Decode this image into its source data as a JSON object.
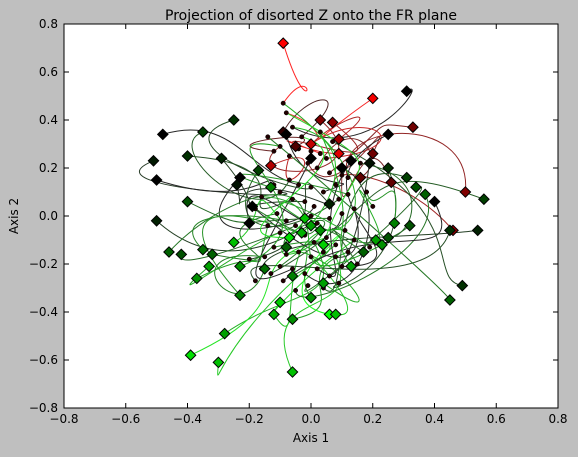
{
  "chart_data": {
    "type": "scatter",
    "title": "Projection of disorted Z onto the FR plane",
    "xlabel": "Axis 1",
    "ylabel": "Axis 2",
    "xlim": [
      -0.8,
      0.8
    ],
    "ylim": [
      -0.8,
      0.8
    ],
    "x_ticks": [
      "−0.8",
      "−0.6",
      "−0.4",
      "−0.2",
      "0.0",
      "0.2",
      "0.4",
      "0.6",
      "0.8"
    ],
    "y_ticks": [
      "−0.8",
      "−0.6",
      "−0.4",
      "−0.2",
      "0.0",
      "0.2",
      "0.4",
      "0.6",
      "0.8"
    ],
    "grid": false,
    "colors": {
      "figure_background": "#bfbfbf",
      "axes_background": "#ffffff",
      "dark_end": "#000000",
      "red_end": "#ff0000",
      "green_end": "#00ff00"
    },
    "endpoint_markers": [
      {
        "x": -0.09,
        "y": 0.72,
        "c": "#ff0000"
      },
      {
        "x": 0.2,
        "y": 0.49,
        "c": "#f50000"
      },
      {
        "x": 0.31,
        "y": 0.52,
        "c": "#000000"
      },
      {
        "x": -0.09,
        "y": 0.35,
        "c": "#300000"
      },
      {
        "x": 0.03,
        "y": 0.4,
        "c": "#800000"
      },
      {
        "x": -0.05,
        "y": 0.29,
        "c": "#500000"
      },
      {
        "x": 0.07,
        "y": 0.39,
        "c": "#900000"
      },
      {
        "x": 0.09,
        "y": 0.32,
        "c": "#a00000"
      },
      {
        "x": 0.09,
        "y": 0.26,
        "c": "#e00000"
      },
      {
        "x": 0.0,
        "y": 0.3,
        "c": "#c00000"
      },
      {
        "x": -0.13,
        "y": 0.21,
        "c": "#b00000"
      },
      {
        "x": 0.2,
        "y": 0.26,
        "c": "#700000"
      },
      {
        "x": 0.16,
        "y": 0.16,
        "c": "#600000"
      },
      {
        "x": 0.33,
        "y": 0.37,
        "c": "#700000"
      },
      {
        "x": 0.26,
        "y": 0.14,
        "c": "#600000"
      },
      {
        "x": 0.5,
        "y": 0.1,
        "c": "#800000"
      },
      {
        "x": 0.46,
        "y": -0.06,
        "c": "#900000"
      },
      {
        "x": -0.08,
        "y": 0.34,
        "c": "#000000"
      },
      {
        "x": -0.25,
        "y": 0.4,
        "c": "#003000"
      },
      {
        "x": -0.48,
        "y": 0.34,
        "c": "#000000"
      },
      {
        "x": -0.35,
        "y": 0.35,
        "c": "#004000"
      },
      {
        "x": -0.51,
        "y": 0.23,
        "c": "#001800"
      },
      {
        "x": -0.5,
        "y": 0.15,
        "c": "#000000"
      },
      {
        "x": -0.4,
        "y": 0.25,
        "c": "#003000"
      },
      {
        "x": -0.29,
        "y": 0.24,
        "c": "#002000"
      },
      {
        "x": -0.23,
        "y": 0.16,
        "c": "#000000"
      },
      {
        "x": -0.24,
        "y": 0.13,
        "c": "#001000"
      },
      {
        "x": -0.17,
        "y": 0.19,
        "c": "#004000"
      },
      {
        "x": -0.13,
        "y": 0.12,
        "c": "#008000"
      },
      {
        "x": -0.19,
        "y": 0.04,
        "c": "#000000"
      },
      {
        "x": -0.2,
        "y": -0.03,
        "c": "#000000"
      },
      {
        "x": -0.4,
        "y": 0.06,
        "c": "#005000"
      },
      {
        "x": -0.5,
        "y": -0.02,
        "c": "#002000"
      },
      {
        "x": -0.46,
        "y": -0.15,
        "c": "#006000"
      },
      {
        "x": -0.42,
        "y": -0.16,
        "c": "#005000"
      },
      {
        "x": -0.35,
        "y": -0.14,
        "c": "#007000"
      },
      {
        "x": -0.32,
        "y": -0.16,
        "c": "#006000"
      },
      {
        "x": -0.37,
        "y": -0.26,
        "c": "#009000"
      },
      {
        "x": -0.33,
        "y": -0.21,
        "c": "#00a000"
      },
      {
        "x": -0.25,
        "y": -0.11,
        "c": "#00c000"
      },
      {
        "x": -0.23,
        "y": -0.33,
        "c": "#008000"
      },
      {
        "x": -0.28,
        "y": -0.49,
        "c": "#00a000"
      },
      {
        "x": -0.39,
        "y": -0.58,
        "c": "#00e000"
      },
      {
        "x": -0.3,
        "y": -0.61,
        "c": "#00c000"
      },
      {
        "x": -0.12,
        "y": -0.41,
        "c": "#00b000"
      },
      {
        "x": -0.1,
        "y": -0.36,
        "c": "#00d000"
      },
      {
        "x": -0.06,
        "y": -0.43,
        "c": "#009000"
      },
      {
        "x": -0.06,
        "y": -0.65,
        "c": "#00c000"
      },
      {
        "x": 0.06,
        "y": -0.41,
        "c": "#00ff00"
      },
      {
        "x": 0.08,
        "y": -0.41,
        "c": "#00c000"
      },
      {
        "x": 0.0,
        "y": -0.34,
        "c": "#009000"
      },
      {
        "x": 0.04,
        "y": -0.28,
        "c": "#00a000"
      },
      {
        "x": -0.06,
        "y": -0.25,
        "c": "#008000"
      },
      {
        "x": -0.15,
        "y": -0.22,
        "c": "#007000"
      },
      {
        "x": -0.08,
        "y": -0.13,
        "c": "#006000"
      },
      {
        "x": 0.0,
        "y": 0.24,
        "c": "#000000"
      },
      {
        "x": 0.1,
        "y": 0.2,
        "c": "#000000"
      },
      {
        "x": 0.13,
        "y": 0.23,
        "c": "#000000"
      },
      {
        "x": 0.19,
        "y": 0.22,
        "c": "#001000"
      },
      {
        "x": 0.25,
        "y": 0.34,
        "c": "#000000"
      },
      {
        "x": 0.25,
        "y": 0.2,
        "c": "#003000"
      },
      {
        "x": 0.31,
        "y": 0.16,
        "c": "#004000"
      },
      {
        "x": 0.34,
        "y": 0.12,
        "c": "#005000"
      },
      {
        "x": 0.37,
        "y": 0.09,
        "c": "#006000"
      },
      {
        "x": 0.4,
        "y": 0.06,
        "c": "#000000"
      },
      {
        "x": 0.56,
        "y": 0.07,
        "c": "#004000"
      },
      {
        "x": 0.54,
        "y": -0.06,
        "c": "#002000"
      },
      {
        "x": 0.45,
        "y": -0.06,
        "c": "#003000"
      },
      {
        "x": 0.32,
        "y": -0.04,
        "c": "#005000"
      },
      {
        "x": 0.27,
        "y": -0.03,
        "c": "#008000"
      },
      {
        "x": 0.25,
        "y": -0.09,
        "c": "#005000"
      },
      {
        "x": 0.21,
        "y": -0.1,
        "c": "#00a000"
      },
      {
        "x": 0.23,
        "y": -0.12,
        "c": "#009000"
      },
      {
        "x": 0.17,
        "y": -0.15,
        "c": "#006000"
      },
      {
        "x": 0.13,
        "y": -0.21,
        "c": "#00a000"
      },
      {
        "x": 0.49,
        "y": -0.29,
        "c": "#003000"
      },
      {
        "x": 0.45,
        "y": -0.35,
        "c": "#006000"
      },
      {
        "x": 0.03,
        "y": -0.06,
        "c": "#009000"
      },
      {
        "x": 0.06,
        "y": 0.05,
        "c": "#002000"
      },
      {
        "x": -0.02,
        "y": -0.01,
        "c": "#00c000"
      },
      {
        "x": 0.0,
        "y": -0.04,
        "c": "#00a000"
      },
      {
        "x": 0.04,
        "y": -0.12,
        "c": "#00d000"
      },
      {
        "x": -0.03,
        "y": -0.07,
        "c": "#00b000"
      },
      {
        "x": -0.07,
        "y": -0.09,
        "c": "#00e000"
      },
      {
        "x": -0.23,
        "y": -0.21,
        "c": "#009000"
      }
    ],
    "start_points": [
      [
        -0.09,
        0.47
      ],
      [
        -0.08,
        0.43
      ],
      [
        -0.06,
        0.37
      ],
      [
        -0.03,
        0.33
      ],
      [
        -0.1,
        0.29
      ],
      [
        -0.12,
        0.27
      ],
      [
        -0.04,
        0.28
      ],
      [
        0.0,
        0.27
      ],
      [
        0.03,
        0.26
      ],
      [
        0.05,
        0.24
      ],
      [
        -0.07,
        0.25
      ],
      [
        -0.01,
        0.22
      ],
      [
        0.02,
        0.2
      ],
      [
        0.06,
        0.18
      ],
      [
        0.1,
        0.17
      ],
      [
        0.12,
        0.16
      ],
      [
        0.08,
        0.13
      ],
      [
        0.04,
        0.1
      ],
      [
        0.0,
        0.12
      ],
      [
        -0.04,
        0.13
      ],
      [
        -0.07,
        0.15
      ],
      [
        -0.1,
        0.1
      ],
      [
        -0.12,
        0.13
      ],
      [
        -0.06,
        0.07
      ],
      [
        -0.02,
        0.06
      ],
      [
        0.01,
        0.04
      ],
      [
        0.05,
        0.05
      ],
      [
        0.09,
        0.07
      ],
      [
        0.12,
        0.09
      ],
      [
        0.14,
        0.03
      ],
      [
        0.1,
        0.01
      ],
      [
        0.06,
        -0.01
      ],
      [
        0.02,
        -0.03
      ],
      [
        -0.02,
        -0.02
      ],
      [
        -0.05,
        -0.04
      ],
      [
        -0.08,
        -0.02
      ],
      [
        -0.11,
        0.01
      ],
      [
        -0.14,
        -0.04
      ],
      [
        -0.1,
        -0.07
      ],
      [
        -0.06,
        -0.09
      ],
      [
        -0.02,
        -0.08
      ],
      [
        0.01,
        -0.11
      ],
      [
        0.05,
        -0.09
      ],
      [
        0.08,
        -0.12
      ],
      [
        0.11,
        -0.06
      ],
      [
        0.14,
        -0.1
      ],
      [
        0.12,
        -0.15
      ],
      [
        0.08,
        -0.17
      ],
      [
        0.04,
        -0.15
      ],
      [
        0.0,
        -0.17
      ],
      [
        -0.04,
        -0.15
      ],
      [
        -0.08,
        -0.16
      ],
      [
        -0.12,
        -0.13
      ],
      [
        -0.15,
        -0.17
      ],
      [
        -0.1,
        -0.21
      ],
      [
        -0.06,
        -0.22
      ],
      [
        -0.02,
        -0.24
      ],
      [
        0.02,
        -0.22
      ],
      [
        0.06,
        -0.25
      ],
      [
        0.1,
        -0.21
      ],
      [
        0.09,
        -0.28
      ],
      [
        0.04,
        -0.3
      ],
      [
        -0.01,
        -0.29
      ],
      [
        -0.05,
        -0.31
      ],
      [
        -0.09,
        -0.27
      ],
      [
        -0.13,
        -0.24
      ],
      [
        -0.16,
        -0.22
      ],
      [
        -0.18,
        -0.27
      ],
      [
        0.15,
        -0.2
      ],
      [
        0.18,
        0.1
      ],
      [
        0.16,
        0.22
      ],
      [
        0.2,
        0.04
      ],
      [
        -0.16,
        0.08
      ],
      [
        -0.18,
        0.03
      ],
      [
        0.03,
        0.35
      ],
      [
        0.07,
        0.31
      ],
      [
        -0.14,
        0.33
      ],
      [
        0.19,
        -0.13
      ],
      [
        -0.2,
        -0.18
      ],
      [
        0.0,
        0.0
      ]
    ]
  }
}
